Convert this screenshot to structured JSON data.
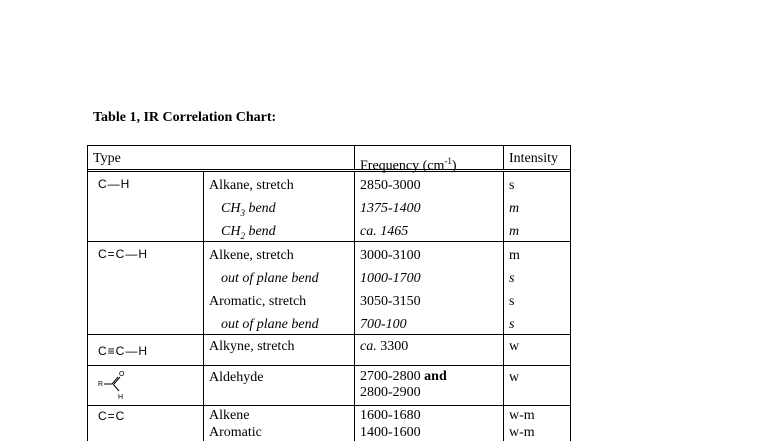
{
  "title": "Table 1, IR Correlation Chart:",
  "headers": {
    "type": "Type",
    "frequency": "Frequency (cm",
    "frequency_sup": "-1",
    "frequency_close": ")",
    "intensity": "Intensity"
  },
  "groups": [
    {
      "structure": "C—H",
      "icon": "c-h-single-bond",
      "rows": [
        {
          "label": "Alkane, stretch",
          "freq": "2850-3000",
          "intensity": "s",
          "italic": false
        },
        {
          "label": "CH3 bend",
          "freq": "1375-1400",
          "intensity": "m",
          "italic": true
        },
        {
          "label": "CH2 bend",
          "freq": "ca. 1465",
          "intensity": "m",
          "italic": true
        }
      ]
    },
    {
      "structure": "C=C—H",
      "icon": "c-c-double-bond-h",
      "rows": [
        {
          "label": "Alkene, stretch",
          "freq": "3000-3100",
          "intensity": "m",
          "italic": false
        },
        {
          "label": "out of plane bend",
          "freq": "1000-1700",
          "intensity": "s",
          "italic": true
        },
        {
          "label": "Aromatic, stretch",
          "freq": "3050-3150",
          "intensity": "s",
          "italic": false
        },
        {
          "label": "out of plane bend",
          "freq": "700-100",
          "intensity": "s",
          "italic": true
        }
      ]
    },
    {
      "structure": "C≡C—H",
      "icon": "c-c-triple-bond-h",
      "rows": [
        {
          "label": "Alkyne, stretch",
          "freq_prefix": "ca.",
          "freq": "3300",
          "intensity": "w"
        }
      ]
    },
    {
      "structure": "R-CHO",
      "icon": "aldehyde-structure",
      "rows": [
        {
          "label": "Aldehyde",
          "freq": "2700-2800",
          "freq_and": "and",
          "freq2": "2800-2900",
          "intensity": "w"
        }
      ]
    },
    {
      "structure": "C=C",
      "icon": "c-c-double-bond",
      "rows": [
        {
          "label": "Alkene",
          "freq": "1600-1680",
          "intensity": "w-m"
        },
        {
          "label": "Aromatic",
          "freq": "1400-1600",
          "intensity": "w-m"
        }
      ]
    }
  ],
  "structure_labels": {
    "c": "C",
    "h": "H",
    "r": "R",
    "o": "O"
  }
}
